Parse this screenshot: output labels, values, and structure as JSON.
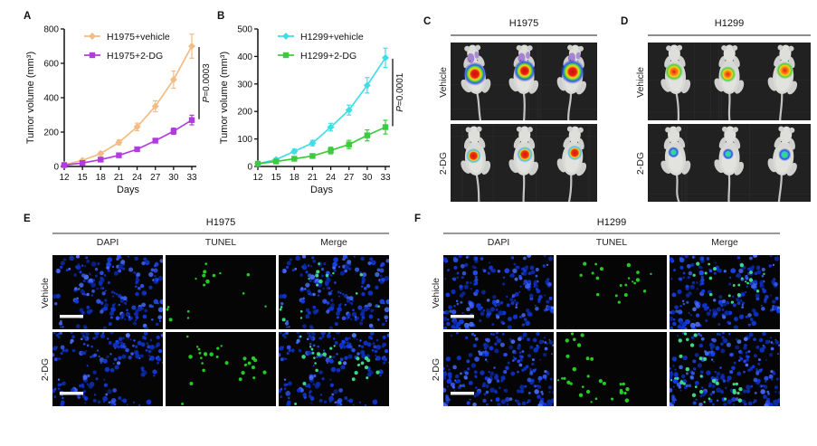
{
  "panels": {
    "A": {
      "letter": "A"
    },
    "B": {
      "letter": "B"
    },
    "C": {
      "letter": "C",
      "title": "H1975",
      "rows": [
        {
          "label": "Vehicle",
          "signal": "h1975_vehicle"
        },
        {
          "label": "2-DG",
          "signal": "h1975_2dg"
        }
      ]
    },
    "D": {
      "letter": "D",
      "title": "H1299",
      "rows": [
        {
          "label": "Vehicle",
          "signal": "h1299_vehicle"
        },
        {
          "label": "2-DG",
          "signal": "h1299_2dg"
        }
      ]
    },
    "E": {
      "letter": "E",
      "title": "H1975",
      "col_headers": [
        "DAPI",
        "TUNEL",
        "Merge"
      ],
      "rows": [
        {
          "label": "Vehicle",
          "green_dots": 16
        },
        {
          "label": "2-DG",
          "green_dots": 28
        }
      ]
    },
    "F": {
      "letter": "F",
      "title": "H1299",
      "col_headers": [
        "DAPI",
        "TUNEL",
        "Merge"
      ],
      "rows": [
        {
          "label": "Vehicle",
          "green_dots": 20
        },
        {
          "label": "2-DG",
          "green_dots": 30
        }
      ]
    }
  },
  "chart_data": [
    {
      "type": "line",
      "panel": "A",
      "x": [
        12,
        15,
        18,
        21,
        24,
        27,
        30,
        33
      ],
      "xlabel": "Days",
      "ylabel": "Tumor volume (mm³)",
      "ylim": [
        0,
        800
      ],
      "yticks": [
        0,
        200,
        400,
        600,
        800
      ],
      "legend_position": "top-left-inside",
      "grid": false,
      "pvalue": "P=0.0003",
      "series": [
        {
          "name": "H1975+vehicle",
          "color": "#f2bc83",
          "marker": "diamond",
          "values": [
            10,
            35,
            75,
            140,
            230,
            350,
            505,
            700
          ],
          "err": [
            4,
            6,
            10,
            14,
            22,
            32,
            50,
            70
          ]
        },
        {
          "name": "H1975+2-DG",
          "color": "#b23ae2",
          "marker": "square",
          "values": [
            8,
            20,
            40,
            65,
            100,
            150,
            205,
            270
          ],
          "err": [
            3,
            4,
            6,
            8,
            10,
            13,
            18,
            28
          ]
        }
      ]
    },
    {
      "type": "line",
      "panel": "B",
      "x": [
        12,
        15,
        18,
        21,
        24,
        27,
        30,
        33
      ],
      "xlabel": "Days",
      "ylabel": "Tumor volume (mm³)",
      "ylim": [
        0,
        500
      ],
      "yticks": [
        0,
        100,
        200,
        300,
        400,
        500
      ],
      "legend_position": "top-left-inside",
      "grid": false,
      "pvalue": "P=0.0001",
      "series": [
        {
          "name": "H1299+vehicle",
          "color": "#40dde6",
          "marker": "diamond",
          "values": [
            10,
            25,
            55,
            85,
            143,
            205,
            295,
            395
          ],
          "err": [
            3,
            5,
            8,
            10,
            14,
            18,
            28,
            35
          ]
        },
        {
          "name": "H1299+2-DG",
          "color": "#3bcb3f",
          "marker": "square",
          "values": [
            10,
            18,
            28,
            38,
            58,
            80,
            113,
            143
          ],
          "err": [
            2,
            3,
            4,
            6,
            12,
            15,
            20,
            25
          ]
        }
      ]
    }
  ],
  "signals": {
    "h1975_vehicle": {
      "radius": 13,
      "neck_mark": true,
      "stops": [
        [
          0,
          "#c80f0f"
        ],
        [
          0.32,
          "#e82310"
        ],
        [
          0.48,
          "#ffd21e"
        ],
        [
          0.62,
          "#55e02a"
        ],
        [
          0.76,
          "#2d5fe8"
        ],
        [
          0.9,
          "rgba(45,60,200,0.35)"
        ],
        [
          1,
          "rgba(45,60,200,0)"
        ]
      ]
    },
    "h1975_2dg": {
      "radius": 8.5,
      "neck_mark": false,
      "stops": [
        [
          0,
          "#d81111"
        ],
        [
          0.45,
          "#ee3a10"
        ],
        [
          0.62,
          "#ffd21e"
        ],
        [
          0.78,
          "#3ec8e0"
        ],
        [
          1,
          "rgba(62,160,224,0)"
        ]
      ]
    },
    "h1299_vehicle": {
      "radius": 9.5,
      "neck_mark": false,
      "stops": [
        [
          0,
          "#e02010"
        ],
        [
          0.4,
          "#ff8a15"
        ],
        [
          0.58,
          "#ffd21e"
        ],
        [
          0.74,
          "#49d42c"
        ],
        [
          0.88,
          "rgba(60,190,60,0.35)"
        ],
        [
          1,
          "rgba(60,190,60,0)"
        ]
      ]
    },
    "h1299_2dg": {
      "radius": 6.5,
      "neck_mark": false,
      "stops": [
        [
          0,
          "#3fe43f"
        ],
        [
          0.45,
          "#2fc8cf"
        ],
        [
          0.7,
          "#2a50dd"
        ],
        [
          0.88,
          "rgba(42,70,220,0.4)"
        ],
        [
          1,
          "rgba(42,70,220,0)"
        ]
      ]
    }
  },
  "mice_colors": {
    "background": "#212121",
    "texture": "#2d2d2d",
    "body": "#d8d8d5",
    "belly": "#e4e4e1",
    "head": "#dededb",
    "limb": "#cfcfcd",
    "tail": "#c4c4c2",
    "neck_mark": "#6a28c8"
  },
  "micro_colors": {
    "background": "#050505",
    "nucleus_hue": 228,
    "tunel_green": "#27d427",
    "merge_green": "#3ee38c",
    "scale_bar": "#f0f0f0"
  }
}
